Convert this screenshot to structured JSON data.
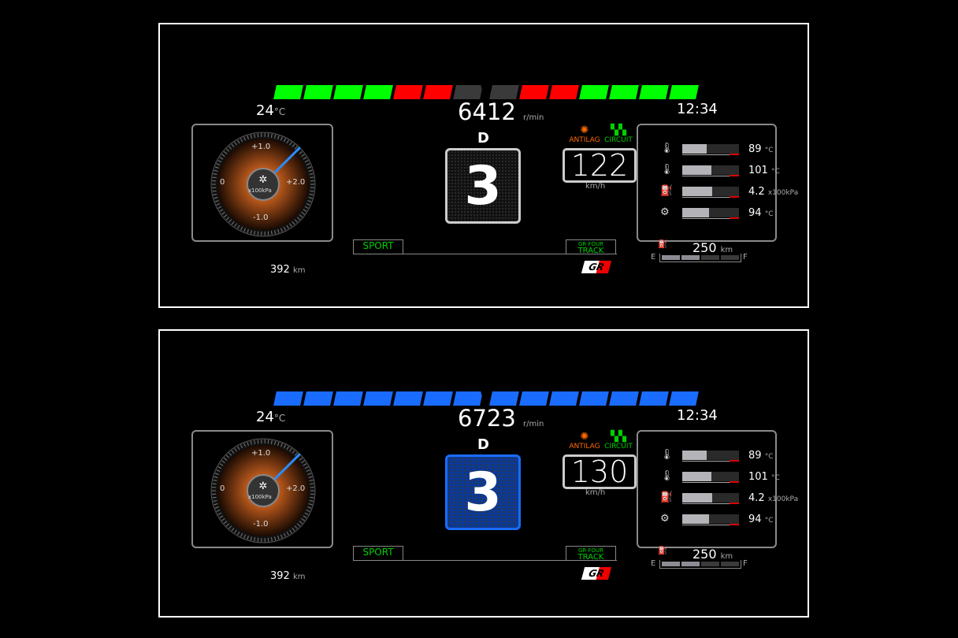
{
  "panels": [
    {
      "theme": "standard",
      "rev_colors": [
        "#00ff00",
        "#00ff00",
        "#00ff00",
        "#00ff00",
        "#ff0000",
        "#ff0000",
        "#3a3a3a",
        "#3a3a3a",
        "#ff0000",
        "#ff0000",
        "#00ff00",
        "#00ff00",
        "#00ff00",
        "#00ff00"
      ],
      "gear_box_bg": "#111111",
      "gear_box_border": "#cccccc",
      "outside_temp": "24",
      "temp_unit": "°C",
      "rpm": "6412",
      "rpm_unit": "r/min",
      "clock": "12:34",
      "shift_mode": "D",
      "gear": "3",
      "speed": "122",
      "speed_unit": "km/h",
      "antilag_label": "ANTILAG",
      "circuit_label": "CIRCUIT",
      "boost": {
        "labels": [
          "+1.0",
          "0",
          "+2.0",
          "-1.0"
        ],
        "unit": "x100kPa",
        "value": 1.45
      },
      "odometer": "392",
      "odo_unit": "km",
      "drive_mode": "SPORT",
      "awd_mode_top": "GR-FOUR",
      "awd_mode": "TRACK",
      "gauges": [
        {
          "icon": "coolant-temp-icon",
          "value": "89",
          "unit": "°C",
          "fill": 0.43
        },
        {
          "icon": "oil-temp-icon",
          "value": "101",
          "unit": "°C",
          "fill": 0.51
        },
        {
          "icon": "oil-pressure-icon",
          "value": "4.2",
          "unit": "x100kPa",
          "fill": 0.53
        },
        {
          "icon": "transmission-temp-icon",
          "value": "94",
          "unit": "°C",
          "fill": 0.47
        }
      ],
      "fuel": {
        "range": "250",
        "unit": "km",
        "empty_label": "E",
        "full_label": "F",
        "level": 0.4
      }
    },
    {
      "theme": "blue",
      "rev_colors": [
        "#1a6cff",
        "#1a6cff",
        "#1a6cff",
        "#1a6cff",
        "#1a6cff",
        "#1a6cff",
        "#1a6cff",
        "#1a6cff",
        "#1a6cff",
        "#1a6cff",
        "#1a6cff",
        "#1a6cff",
        "#1a6cff",
        "#1a6cff"
      ],
      "gear_box_bg": "#0a3a9a",
      "gear_box_border": "#1a6cff",
      "outside_temp": "24",
      "temp_unit": "°C",
      "rpm": "6723",
      "rpm_unit": "r/min",
      "clock": "12:34",
      "shift_mode": "D",
      "gear": "3",
      "speed": "130",
      "speed_unit": "km/h",
      "antilag_label": "ANTILAG",
      "circuit_label": "CIRCUIT",
      "boost": {
        "labels": [
          "+1.0",
          "0",
          "+2.0",
          "-1.0"
        ],
        "unit": "x100kPa",
        "value": 1.45
      },
      "odometer": "392",
      "odo_unit": "km",
      "drive_mode": "SPORT",
      "awd_mode_top": "GR-FOUR",
      "awd_mode": "TRACK",
      "gauges": [
        {
          "icon": "coolant-temp-icon",
          "value": "89",
          "unit": "°C",
          "fill": 0.43
        },
        {
          "icon": "oil-temp-icon",
          "value": "101",
          "unit": "°C",
          "fill": 0.51
        },
        {
          "icon": "oil-pressure-icon",
          "value": "4.2",
          "unit": "x100kPa",
          "fill": 0.53
        },
        {
          "icon": "transmission-temp-icon",
          "value": "94",
          "unit": "°C",
          "fill": 0.47
        }
      ],
      "fuel": {
        "range": "250",
        "unit": "km",
        "empty_label": "E",
        "full_label": "F",
        "level": 0.4
      }
    }
  ]
}
